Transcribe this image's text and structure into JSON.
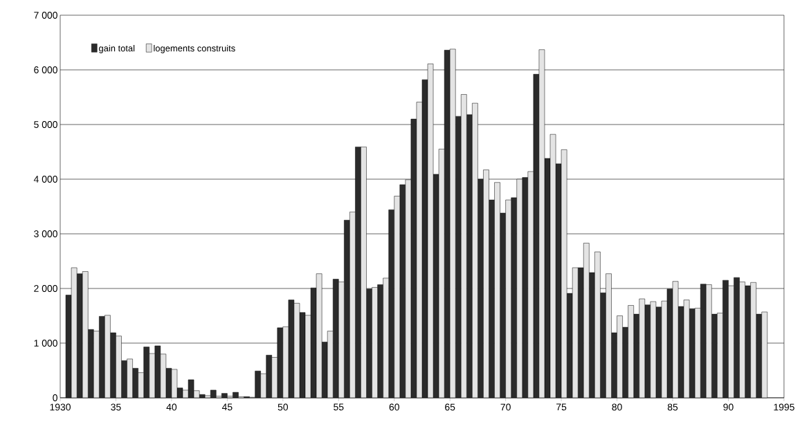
{
  "chart_data": {
    "type": "bar",
    "x": [
      1931,
      1932,
      1933,
      1934,
      1935,
      1936,
      1937,
      1938,
      1939,
      1940,
      1941,
      1942,
      1943,
      1944,
      1945,
      1946,
      1947,
      1948,
      1949,
      1950,
      1951,
      1952,
      1953,
      1954,
      1955,
      1956,
      1957,
      1958,
      1959,
      1960,
      1961,
      1962,
      1963,
      1964,
      1965,
      1966,
      1967,
      1968,
      1969,
      1970,
      1971,
      1972,
      1973,
      1974,
      1975,
      1976,
      1977,
      1978,
      1979,
      1980,
      1981,
      1982,
      1983,
      1984,
      1985,
      1986,
      1987,
      1988,
      1989,
      1990,
      1991,
      1992,
      1993
    ],
    "series": [
      {
        "name": "gain total",
        "color": "#2b2b2b",
        "values": [
          1880,
          2270,
          1250,
          1490,
          1190,
          680,
          540,
          930,
          950,
          540,
          180,
          330,
          60,
          140,
          80,
          100,
          20,
          490,
          780,
          1280,
          1790,
          1560,
          2010,
          1020,
          2170,
          3250,
          4590,
          1990,
          2070,
          3440,
          3900,
          5100,
          5820,
          4090,
          6360,
          5150,
          5180,
          4000,
          3620,
          3380,
          3660,
          4030,
          5920,
          4380,
          4280,
          1910,
          2380,
          2290,
          1920,
          1190,
          1290,
          1530,
          1700,
          1660,
          1990,
          1670,
          1630,
          2080,
          1530,
          2150,
          2200,
          2050,
          1530
        ]
      },
      {
        "name": "logements construits",
        "color": "#e4e4e4",
        "values": [
          2380,
          2310,
          1220,
          1510,
          1130,
          710,
          460,
          810,
          800,
          520,
          140,
          130,
          40,
          30,
          30,
          20,
          10,
          440,
          740,
          1300,
          1730,
          1510,
          2270,
          1220,
          2120,
          3400,
          4590,
          2020,
          2190,
          3690,
          3990,
          5410,
          6110,
          4550,
          6380,
          5550,
          5390,
          4170,
          3940,
          3620,
          4000,
          4140,
          6370,
          4820,
          4540,
          2380,
          2830,
          2670,
          2270,
          1500,
          1690,
          1810,
          1760,
          1770,
          2130,
          1790,
          1640,
          2070,
          1550,
          2050,
          2120,
          2110,
          1570
        ]
      }
    ],
    "xlim": [
      1930,
      1995
    ],
    "xticks": [
      1930,
      {
        "value": 1935,
        "label": "35"
      },
      {
        "value": 1940,
        "label": "40"
      },
      {
        "value": 1945,
        "label": "45"
      },
      {
        "value": 1950,
        "label": "50"
      },
      {
        "value": 1955,
        "label": "55"
      },
      {
        "value": 1960,
        "label": "60"
      },
      {
        "value": 1965,
        "label": "65"
      },
      {
        "value": 1970,
        "label": "70"
      },
      {
        "value": 1975,
        "label": "75"
      },
      {
        "value": 1980,
        "label": "80"
      },
      {
        "value": 1985,
        "label": "85"
      },
      {
        "value": 1990,
        "label": "90"
      },
      1995
    ],
    "ylim": [
      0,
      7000
    ],
    "yticks": [
      {
        "value": 0,
        "label": "0"
      },
      {
        "value": 1000,
        "label": "1 000"
      },
      {
        "value": 2000,
        "label": "2 000"
      },
      {
        "value": 3000,
        "label": "3 000"
      },
      {
        "value": 4000,
        "label": "4 000"
      },
      {
        "value": 5000,
        "label": "5 000"
      },
      {
        "value": 6000,
        "label": "6 000"
      },
      {
        "value": 7000,
        "label": "7 000"
      }
    ],
    "grid": "y",
    "legend": "top left"
  }
}
